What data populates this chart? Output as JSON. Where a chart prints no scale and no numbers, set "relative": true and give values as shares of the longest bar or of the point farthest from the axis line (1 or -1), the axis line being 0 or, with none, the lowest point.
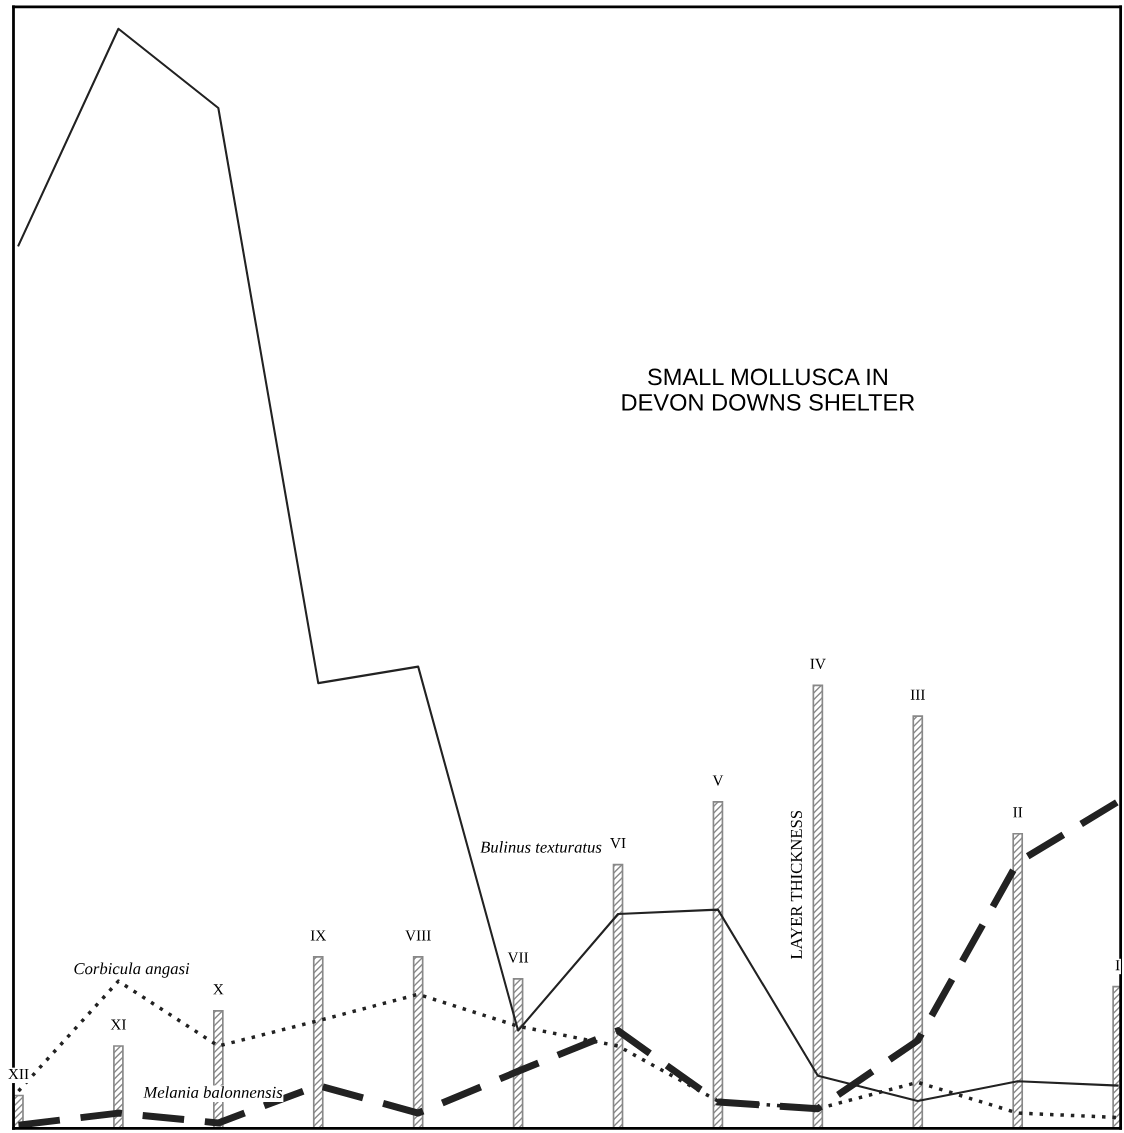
{
  "chart_data": {
    "type": "line",
    "title": "SMALL MOLLUSCA IN\nDEVON DOWNS SHELTER",
    "relative": true,
    "legend": false,
    "categories": [
      "XII",
      "XI",
      "X",
      "IX",
      "VIII",
      "VII",
      "VI",
      "V",
      "IV",
      "III",
      "II",
      "I"
    ],
    "series": [
      {
        "name": "LAYER THICKNESS",
        "type": "bar",
        "color": "#888888",
        "values": [
          0.03,
          0.075,
          0.107,
          0.156,
          0.156,
          0.136,
          0.24,
          0.297,
          0.403,
          0.375,
          0.268,
          0.129
        ]
      },
      {
        "name": "Bulinus texturatus",
        "line_style": "solid",
        "color": "#222222",
        "values": [
          0.803,
          1.0,
          0.928,
          0.405,
          0.42,
          0.089,
          0.195,
          0.199,
          0.048,
          0.025,
          0.043,
          0.039
        ]
      },
      {
        "name": "Corbicula angasi",
        "line_style": "dotted",
        "color": "#222222",
        "values": [
          0.034,
          0.134,
          0.075,
          0.098,
          0.122,
          0.093,
          0.075,
          0.025,
          0.018,
          0.042,
          0.014,
          0.01
        ]
      },
      {
        "name": "Melania balonnensis",
        "line_style": "dashed",
        "color": "#222222",
        "values": [
          0.003,
          0.014,
          0.005,
          0.039,
          0.014,
          0.052,
          0.089,
          0.024,
          0.018,
          0.08,
          0.242,
          0.297
        ]
      }
    ]
  }
}
